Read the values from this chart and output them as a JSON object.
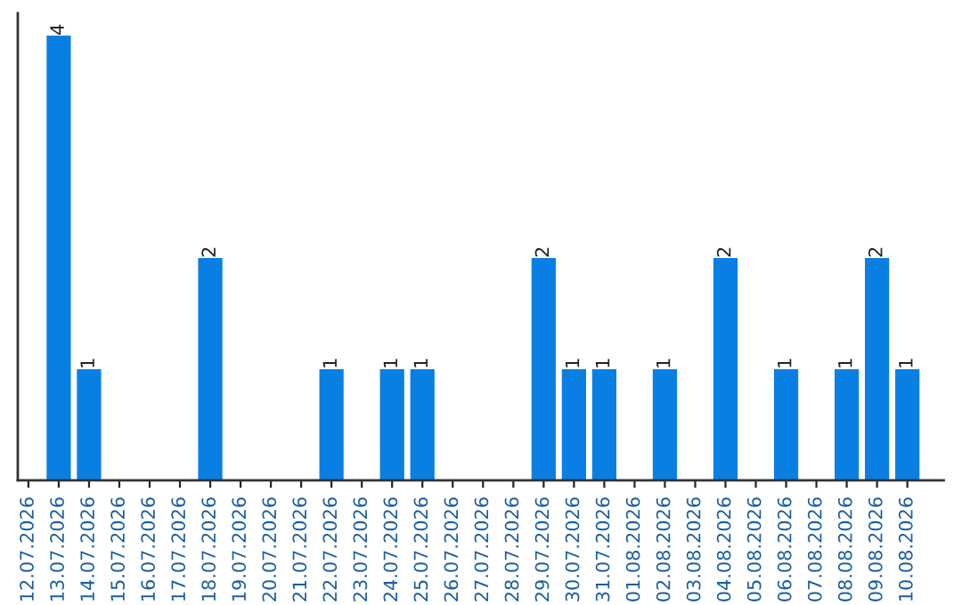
{
  "chart_data": {
    "type": "bar",
    "categories": [
      "12.07.2026",
      "13.07.2026",
      "14.07.2026",
      "15.07.2026",
      "16.07.2026",
      "17.07.2026",
      "18.07.2026",
      "19.07.2026",
      "20.07.2026",
      "21.07.2026",
      "22.07.2026",
      "23.07.2026",
      "24.07.2026",
      "25.07.2026",
      "26.07.2026",
      "27.07.2026",
      "28.07.2026",
      "29.07.2026",
      "30.07.2026",
      "31.07.2026",
      "01.08.2026",
      "02.08.2026",
      "03.08.2026",
      "04.08.2026",
      "05.08.2026",
      "06.08.2026",
      "07.08.2026",
      "08.08.2026",
      "09.08.2026",
      "10.08.2026"
    ],
    "values": [
      0,
      4,
      1,
      0,
      0,
      0,
      2,
      0,
      0,
      0,
      1,
      0,
      1,
      1,
      0,
      0,
      0,
      2,
      1,
      1,
      0,
      1,
      0,
      2,
      0,
      1,
      0,
      1,
      2,
      1
    ],
    "value_labels": [
      null,
      "4",
      "1",
      null,
      null,
      null,
      "2",
      null,
      null,
      null,
      "1",
      null,
      "1",
      "1",
      null,
      null,
      null,
      "2",
      "1",
      "1",
      null,
      "1",
      null,
      "2",
      null,
      "1",
      null,
      "1",
      "2",
      "1"
    ],
    "color": "#0a7fe3",
    "ylim": [
      0,
      4.2
    ],
    "tick_labels": "x",
    "grid": false,
    "legend": false
  }
}
